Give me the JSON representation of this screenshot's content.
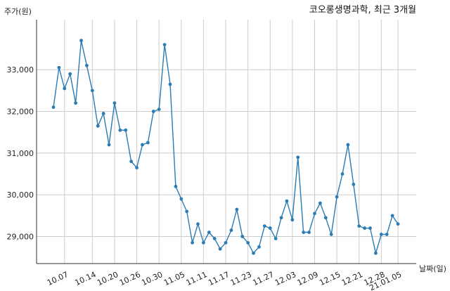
{
  "chart_data": {
    "type": "line",
    "title": "코오롱생명과학, 최근 3개월",
    "ylabel": "주가(원)",
    "xlabel": "날짜(일)",
    "ylim": [
      28350,
      34200
    ],
    "grid": true,
    "yticks": [
      29000,
      30000,
      31000,
      32000,
      33000
    ],
    "ytick_labels": [
      "29,000",
      "30,000",
      "31,000",
      "32,000",
      "33,000"
    ],
    "xtick_labels": [
      "10.07",
      "10.14",
      "10.20",
      "10.26",
      "10.30",
      "11.05",
      "11.11",
      "11.17",
      "11.23",
      "11.27",
      "12.03",
      "12.09",
      "12.15",
      "12.21",
      "12.28",
      "21.01.05"
    ],
    "xtick_positions": [
      2,
      7,
      11,
      15,
      19,
      23,
      27,
      31,
      35,
      39,
      43,
      47,
      51,
      55,
      59,
      62
    ],
    "series": [
      {
        "color": "#2b7bb4",
        "values": [
          32100,
          33050,
          32550,
          32900,
          32200,
          33700,
          33100,
          32500,
          31650,
          31950,
          31200,
          32200,
          31550,
          31550,
          30800,
          30650,
          31200,
          31250,
          32000,
          32050,
          33600,
          32650,
          30200,
          29900,
          29600,
          28850,
          29300,
          28850,
          29100,
          28950,
          28700,
          28850,
          29150,
          29650,
          29000,
          28850,
          28600,
          28750,
          29250,
          29200,
          28950,
          29450,
          29850,
          29400,
          30900,
          29100,
          29100,
          29550,
          29800,
          29450,
          29050,
          29950,
          30500,
          31200,
          30250,
          29250,
          29200,
          29200,
          28600,
          29050,
          29050,
          29500,
          29300
        ]
      }
    ]
  }
}
